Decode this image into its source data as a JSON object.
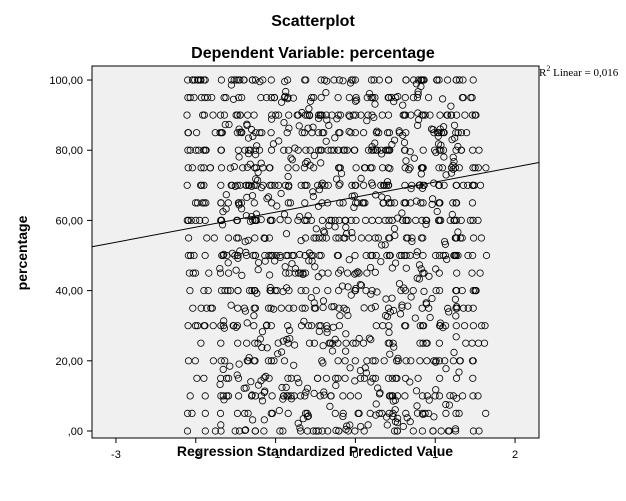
{
  "chart_data": {
    "type": "scatter",
    "title": "Scatterplot",
    "subtitle": "Dependent Variable: percentage",
    "xlabel": "Regression Standardized Predicted Value",
    "ylabel": "percentage",
    "xlim": [
      -3.3,
      2.3
    ],
    "ylim": [
      -2,
      104
    ],
    "x_ticks": [
      -3,
      -2,
      -1,
      0,
      1,
      2
    ],
    "x_tick_labels": [
      "-3",
      "-2",
      "-1",
      "0",
      "1",
      "2"
    ],
    "y_ticks": [
      0,
      20,
      40,
      60,
      80,
      100
    ],
    "y_tick_labels": [
      ",00",
      "20,00",
      "40,00",
      "60,00",
      "80,00",
      "100,00"
    ],
    "grid": false,
    "plot_background": "#f0f0f0",
    "marker": "open-circle",
    "annotation": {
      "r_label": "R",
      "r_sup": "2",
      "r_text": " Linear = 0,016",
      "position": "top-right"
    },
    "fit_line": {
      "label": "Linear",
      "x": [
        -3.3,
        2.3
      ],
      "y": [
        52.5,
        76.5
      ]
    },
    "series": [
      {
        "points_summary": "dense open-circle scatter",
        "x_range": [
          -2.1,
          1.65
        ],
        "y_levels": [
          0,
          5,
          10,
          15,
          20,
          25,
          30,
          35,
          40,
          45,
          50,
          55,
          60,
          65,
          70,
          75,
          80,
          85,
          90,
          95,
          100
        ]
      }
    ]
  }
}
